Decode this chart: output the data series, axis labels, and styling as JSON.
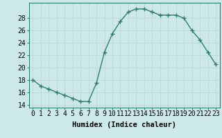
{
  "x": [
    0,
    1,
    2,
    3,
    4,
    5,
    6,
    7,
    8,
    9,
    10,
    11,
    12,
    13,
    14,
    15,
    16,
    17,
    18,
    19,
    20,
    21,
    22,
    23
  ],
  "y": [
    18,
    17,
    16.5,
    16,
    15.5,
    15,
    14.5,
    14.5,
    17.5,
    22.5,
    25.5,
    27.5,
    29,
    29.5,
    29.5,
    29,
    28.5,
    28.5,
    28.5,
    28,
    26,
    24.5,
    22.5,
    20.5
  ],
  "line_color": "#2e7d6e",
  "marker": "+",
  "marker_size": 4,
  "bg_color": "#cce8e8",
  "grid_color": "#b8d4d4",
  "xlabel": "Humidex (Indice chaleur)",
  "ylabel_ticks": [
    14,
    16,
    18,
    20,
    22,
    24,
    26,
    28
  ],
  "ylim": [
    13.5,
    30.5
  ],
  "xlim": [
    -0.5,
    23.5
  ],
  "xtick_labels": [
    "0",
    "1",
    "2",
    "3",
    "4",
    "5",
    "6",
    "7",
    "8",
    "9",
    "10",
    "11",
    "12",
    "13",
    "14",
    "15",
    "16",
    "17",
    "18",
    "19",
    "20",
    "21",
    "22",
    "23"
  ],
  "xlabel_fontsize": 7.5,
  "tick_fontsize": 7,
  "linewidth": 1.0
}
